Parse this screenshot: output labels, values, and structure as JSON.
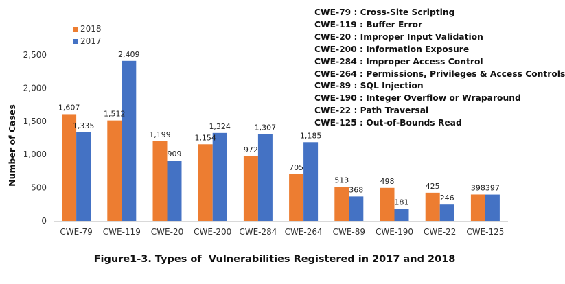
{
  "caption": "Figure1-3. Types of  Vulnerabilities Registered in 2017 and 2018",
  "cwe_descriptions": [
    "CWE-79    : Cross-Site Scripting",
    "CWE-119  : Buffer Error",
    "CWE-20    : Improper Input Validation",
    "CWE-200  : Information Exposure",
    "CWE-284 : Improper Access Control",
    "CWE-264 : Permissions, Privileges & Access Controls",
    "CWE-89     : SQL Injection",
    "CWE-190 : Integer Overflow or Wraparound",
    "CWE-22    : Path Traversal",
    "CWE-125  : Out-of-Bounds Read"
  ],
  "colors": {
    "2018": "#ed7d31",
    "2017": "#4472c4",
    "axis": "#d9d9d9"
  },
  "chart_data": {
    "type": "bar",
    "title": "",
    "xlabel": "",
    "ylabel": "Number of Cases",
    "ylim": [
      0,
      2500
    ],
    "yticks": [
      0,
      500,
      1000,
      1500,
      2000,
      2500
    ],
    "ytick_labels": [
      "0",
      "500",
      "1,000",
      "1,500",
      "2,000",
      "2,500"
    ],
    "grid": false,
    "legend_position": "top-left",
    "categories": [
      "CWE-79",
      "CWE-119",
      "CWE-20",
      "CWE-200",
      "CWE-284",
      "CWE-264",
      "CWE-89",
      "CWE-190",
      "CWE-22",
      "CWE-125"
    ],
    "series": [
      {
        "name": "2018",
        "values": [
          1607,
          1512,
          1199,
          1154,
          972,
          705,
          513,
          498,
          425,
          398
        ],
        "labels": [
          "1,607",
          "1,512",
          "1,199",
          "1,154",
          "972",
          "705",
          "513",
          "498",
          "425",
          "398"
        ]
      },
      {
        "name": "2017",
        "values": [
          1335,
          2409,
          909,
          1324,
          1307,
          1185,
          368,
          181,
          246,
          397
        ],
        "labels": [
          "1,335",
          "2,409",
          "909",
          "1,324",
          "1,307",
          "1,185",
          "368",
          "181",
          "246",
          "397"
        ]
      }
    ]
  }
}
